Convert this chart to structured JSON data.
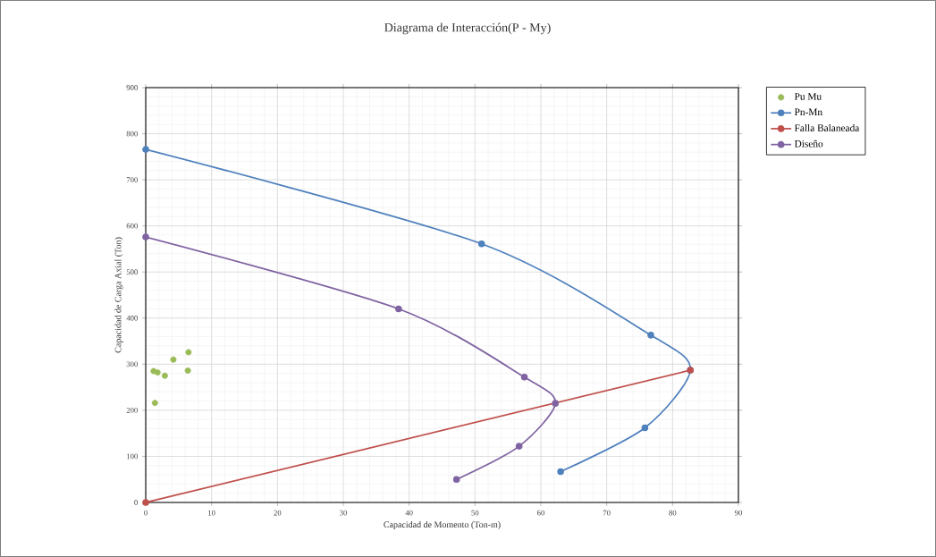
{
  "chart_data": {
    "type": "line",
    "title": "Diagrama de Interacción(P - My)",
    "xlabel": "Capacidad de Momento (Ton-m)",
    "ylabel": "Capacidad de Carga Axial  (Ton)",
    "xlim": [
      0,
      90
    ],
    "xticks": [
      0,
      10,
      20,
      30,
      40,
      50,
      60,
      70,
      80,
      90
    ],
    "ylim": [
      0,
      900
    ],
    "yticks": [
      0,
      100,
      200,
      300,
      400,
      500,
      600,
      700,
      800,
      900
    ],
    "grid": true,
    "legend": "right",
    "marker": "circle",
    "series": [
      {
        "name": "Pu Mu",
        "type": "scatter",
        "color": "#9bbb59",
        "x": [
          1.2,
          1.8,
          2.9,
          4.2,
          6.5,
          6.4,
          1.4
        ],
        "values": [
          285,
          282,
          275,
          310,
          326,
          286,
          216
        ]
      },
      {
        "name": "Pn-Mn",
        "color": "#4f81bd",
        "x": [
          0,
          51,
          76.7,
          82.7,
          75.8,
          63
        ],
        "values": [
          766,
          561,
          363,
          287,
          162,
          67
        ]
      },
      {
        "name": "Falla Balaneada",
        "color": "#c0504d",
        "x": [
          0,
          82.7
        ],
        "values": [
          0,
          287
        ]
      },
      {
        "name": "Diseño",
        "color": "#8064a2",
        "x": [
          0,
          38.4,
          57.5,
          62.2,
          56.7,
          47.2
        ],
        "values": [
          576,
          420,
          272,
          215,
          122,
          50
        ]
      }
    ]
  }
}
